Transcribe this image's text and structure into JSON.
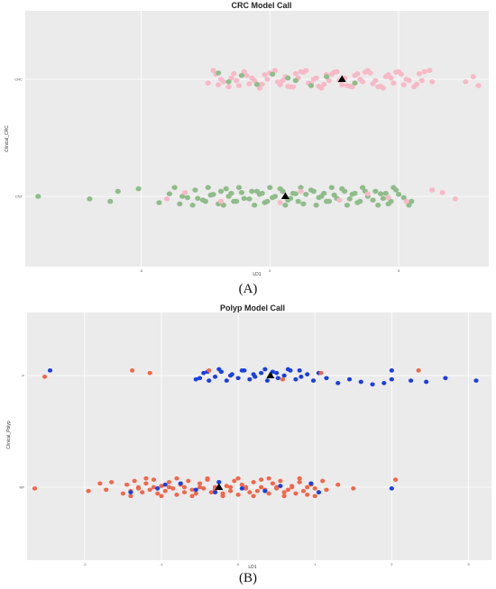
{
  "panels": {
    "a": {
      "label": "(A)"
    },
    "b": {
      "label": "(B)"
    }
  },
  "chart_data": [
    {
      "type": "scatter",
      "title": "CRC Model Call",
      "xlabel": "LD1",
      "ylabel": "Clinical_CRC",
      "categories": [
        "CRC",
        "CNT"
      ],
      "xticks": [
        -5,
        0,
        5
      ],
      "xlim": [
        -9.5,
        8.5
      ],
      "grid": true,
      "colors": {
        "CRC": "#f7b9c6",
        "CNT": "#8fbc8a",
        "centroid": "#000000",
        "panel": "#ebebeb",
        "grid": "#ffffff"
      },
      "series": [
        {
          "category": "CRC",
          "color": "#f7b9c6",
          "x": [
            -2.4,
            -2.1,
            -1.8,
            -1.5,
            -1.2,
            -0.9,
            -0.6,
            -0.3,
            0.0,
            0.3,
            0.6,
            0.9,
            1.2,
            1.5,
            1.8,
            2.1,
            2.4,
            2.7,
            3.0,
            3.3,
            3.6,
            3.9,
            4.2,
            4.5,
            4.8,
            5.1,
            5.4,
            5.7,
            6.0,
            6.3,
            -2.2,
            -1.6,
            -1.0,
            -0.4,
            0.2,
            0.8,
            1.4,
            2.0,
            2.6,
            3.2,
            3.8,
            4.4,
            5.0,
            5.6,
            6.2,
            -1.9,
            -1.3,
            -0.7,
            -0.1,
            0.5,
            1.1,
            1.7,
            2.3,
            2.9,
            3.5,
            4.1,
            4.7,
            5.3,
            5.9,
            -2.0,
            -1.4,
            -0.8,
            -0.2,
            0.4,
            1.0,
            1.6,
            2.2,
            2.8,
            3.4,
            4.0,
            4.6,
            5.2,
            5.8,
            0.7,
            1.3,
            1.9,
            2.5,
            3.1,
            3.7,
            4.3,
            4.9,
            7.6,
            7.9,
            8.1
          ],
          "jitter": [
            0.15,
            -0.2,
            0.1,
            -0.05,
            0.25,
            -0.15,
            0.05,
            0.2,
            -0.25,
            0.1,
            -0.1,
            0.3,
            -0.3,
            0.15,
            -0.05,
            0.2,
            -0.2,
            0.05,
            0.25,
            -0.15,
            0.1,
            -0.25,
            0.3,
            -0.1,
            0.15,
            -0.2,
            0.05,
            0.2,
            -0.3,
            0.1,
            -0.35,
            0.3,
            -0.3,
            0.35,
            -0.35,
            0.3,
            -0.35,
            0.35,
            -0.3,
            0.3,
            -0.35,
            0.35,
            -0.3,
            0.3,
            -0.35,
            0.0,
            0.05,
            -0.05,
            0.0,
            0.05,
            -0.05,
            0.0,
            0.05,
            -0.05,
            0.0,
            0.05,
            -0.05,
            0.0,
            0.05,
            0.22,
            -0.22,
            0.18,
            -0.18,
            0.22,
            -0.22,
            0.18,
            -0.18,
            0.22,
            -0.22,
            0.18,
            -0.18,
            0.22,
            -0.22,
            0.28,
            -0.28,
            0.28,
            -0.28,
            0.28,
            -0.28,
            0.28,
            -0.28,
            0.1,
            -0.1,
            0.25
          ]
        },
        {
          "category": "CRC",
          "color": "#8fbc8a",
          "x": [
            -1.6,
            -1.1,
            -0.5,
            0.1,
            1.0,
            1.6,
            2.2,
            3.3,
            -2.0,
            0.7
          ],
          "jitter": [
            0.1,
            -0.15,
            0.2,
            -0.2,
            0.05,
            0.25,
            -0.1,
            0.15,
            -0.25,
            -0.05
          ]
        },
        {
          "category": "CNT",
          "color": "#8fbc8a",
          "x": [
            -9.0,
            -7.0,
            -6.2,
            -5.9,
            -5.1,
            -4.3,
            -3.9,
            -3.5,
            -3.2,
            -2.9,
            -2.6,
            -2.3,
            -2.0,
            -1.7,
            -1.4,
            -1.1,
            -0.8,
            -0.5,
            -0.2,
            0.1,
            0.4,
            0.7,
            1.0,
            1.3,
            1.6,
            1.9,
            2.2,
            2.5,
            2.8,
            3.1,
            3.4,
            3.7,
            4.0,
            4.3,
            4.6,
            4.9,
            5.2,
            5.5,
            -3.7,
            -3.0,
            -2.4,
            -1.8,
            -1.2,
            -0.6,
            0.0,
            0.6,
            1.2,
            1.8,
            2.4,
            3.0,
            3.6,
            4.2,
            4.8,
            5.4,
            -3.4,
            -2.8,
            -2.2,
            -1.6,
            -1.0,
            -0.4,
            0.2,
            0.8,
            1.4,
            2.0,
            2.6,
            3.2,
            3.8,
            4.4,
            5.0,
            -2.5,
            -1.9,
            -1.3,
            -0.7,
            -0.1,
            0.5,
            1.1,
            1.7,
            2.3,
            2.9,
            3.5,
            4.1,
            4.7,
            -1.5,
            -0.3,
            0.9,
            2.1,
            3.3,
            4.5
          ],
          "jitter": [
            0.0,
            0.1,
            0.2,
            -0.2,
            -0.3,
            0.25,
            -0.1,
            0.3,
            0.05,
            -0.25,
            0.15,
            -0.05,
            0.3,
            -0.3,
            0.2,
            -0.15,
            0.1,
            -0.2,
            0.25,
            0.05,
            -0.3,
            0.15,
            -0.1,
            0.3,
            -0.25,
            0.05,
            0.2,
            -0.05,
            -0.3,
            0.1,
            0.25,
            -0.2,
            0.15,
            -0.1,
            0.3,
            -0.25,
            0.05,
            0.2,
            -0.35,
            0.35,
            -0.35,
            0.35,
            -0.35,
            0.35,
            -0.35,
            0.35,
            -0.35,
            0.35,
            -0.35,
            0.35,
            -0.35,
            0.35,
            -0.35,
            0.35,
            0.0,
            0.08,
            -0.08,
            0.0,
            0.08,
            -0.08,
            0.0,
            0.08,
            -0.08,
            0.0,
            0.08,
            -0.08,
            0.0,
            0.08,
            -0.08,
            0.2,
            -0.2,
            0.2,
            -0.2,
            0.2,
            -0.2,
            0.2,
            -0.2,
            0.2,
            -0.2,
            0.2,
            -0.2,
            0.2,
            -0.12,
            -0.12,
            -0.12,
            -0.12,
            -0.12,
            -0.12
          ]
        },
        {
          "category": "CNT",
          "color": "#f7b9c6",
          "x": [
            -4.0,
            -3.3,
            -1.9,
            0.4,
            1.2,
            2.7,
            3.8,
            4.6,
            5.3,
            6.3,
            7.2,
            6.7
          ],
          "jitter": [
            0.1,
            -0.15,
            0.2,
            0.25,
            -0.2,
            0.15,
            -0.1,
            0.05,
            0.2,
            -0.25,
            0.1,
            -0.15
          ]
        }
      ],
      "centroids": [
        {
          "category": "CRC",
          "x": 2.8
        },
        {
          "category": "CNT",
          "x": 0.6
        }
      ]
    },
    {
      "type": "scatter",
      "title": "Polyp Model Call",
      "xlabel": "LD1",
      "ylabel": "Clinical_Polyp",
      "categories": [
        "P",
        "NP"
      ],
      "xticks": [
        -2,
        -1,
        0,
        1,
        2,
        3
      ],
      "xlim": [
        -2.75,
        3.3
      ],
      "grid": true,
      "colors": {
        "P": "#1b3fe0",
        "NP": "#f2674a",
        "centroid": "#000000",
        "panel": "#ebebeb",
        "grid": "#ffffff"
      },
      "series": [
        {
          "category": "P",
          "color": "#1b3fe0",
          "x": [
            -2.45,
            -0.55,
            -0.5,
            -0.45,
            -0.38,
            -0.3,
            -0.22,
            -0.15,
            -0.08,
            0.0,
            0.08,
            0.15,
            0.22,
            0.3,
            0.38,
            0.45,
            0.52,
            0.6,
            0.68,
            0.75,
            0.82,
            0.9,
            0.98,
            1.05,
            1.15,
            1.3,
            1.45,
            1.6,
            1.75,
            1.9,
            2.0,
            2.25,
            2.45,
            2.7,
            3.1,
            -0.4,
            -0.25,
            -0.1,
            0.05,
            0.2,
            0.35,
            0.5,
            0.65,
            0.8,
            2.0
          ],
          "jitter": [
            -0.2,
            0.15,
            0.1,
            -0.1,
            0.2,
            0.05,
            -0.15,
            0.2,
            -0.05,
            0.1,
            -0.2,
            0.15,
            0.05,
            -0.1,
            0.2,
            -0.15,
            0.1,
            0.0,
            -0.2,
            0.15,
            0.05,
            -0.05,
            0.2,
            -0.1,
            0.1,
            0.3,
            0.15,
            0.25,
            0.35,
            0.3,
            0.15,
            0.2,
            0.25,
            0.1,
            0.2,
            -0.15,
            -0.25,
            0.0,
            -0.2,
            -0.05,
            -0.25,
            -0.1,
            -0.25,
            -0.2,
            -0.2
          ]
        },
        {
          "category": "P",
          "color": "#f2674a",
          "x": [
            -2.52,
            -1.38,
            -1.15,
            -0.38,
            0.58,
            1.08,
            2.35
          ],
          "jitter": [
            0.05,
            -0.2,
            -0.1,
            -0.2,
            0.15,
            -0.1,
            -0.2
          ]
        },
        {
          "category": "NP",
          "color": "#f2674a",
          "x": [
            -2.65,
            -1.95,
            -1.8,
            -1.72,
            -1.65,
            -1.5,
            -1.45,
            -1.4,
            -1.35,
            -1.3,
            -1.25,
            -1.2,
            -1.15,
            -1.1,
            -1.05,
            -1.0,
            -0.95,
            -0.9,
            -0.85,
            -0.8,
            -0.75,
            -0.7,
            -0.65,
            -0.6,
            -0.55,
            -0.5,
            -0.45,
            -0.4,
            -0.35,
            -0.3,
            -0.25,
            -0.2,
            -0.15,
            -0.1,
            -0.05,
            0.0,
            0.05,
            0.1,
            0.15,
            0.2,
            0.25,
            0.3,
            0.35,
            0.4,
            0.45,
            0.5,
            0.55,
            0.6,
            0.65,
            0.7,
            0.75,
            0.8,
            0.85,
            0.9,
            0.95,
            1.0,
            1.05,
            1.1,
            1.15,
            1.3,
            1.5,
            2.05,
            -1.4,
            -1.2,
            -1.0,
            -0.8,
            -0.6,
            -0.4,
            -0.2,
            0.0,
            0.2,
            0.4,
            0.6,
            0.8,
            1.0,
            -1.3,
            -1.1,
            -0.9,
            -0.7,
            -0.5,
            -0.3,
            -0.1,
            0.1,
            0.3,
            0.5,
            0.7,
            0.9
          ],
          "jitter": [
            0.05,
            0.15,
            -0.15,
            0.1,
            -0.2,
            0.25,
            -0.1,
            0.15,
            -0.25,
            0.05,
            0.2,
            -0.15,
            0.1,
            -0.3,
            0.25,
            -0.05,
            0.15,
            -0.2,
            0.05,
            0.3,
            -0.1,
            0.2,
            -0.25,
            0.1,
            0.25,
            -0.15,
            0.05,
            -0.3,
            0.2,
            0.1,
            -0.2,
            0.25,
            -0.05,
            0.15,
            -0.25,
            0.3,
            -0.1,
            0.05,
            0.2,
            -0.2,
            0.15,
            -0.3,
            0.1,
            0.25,
            -0.15,
            0.05,
            -0.25,
            0.2,
            0.1,
            -0.05,
            0.25,
            -0.2,
            0.15,
            0.3,
            -0.1,
            0.05,
            0.2,
            -0.25,
            0.1,
            -0.1,
            0.05,
            -0.3,
            0.35,
            -0.35,
            0.35,
            -0.35,
            0.35,
            -0.35,
            0.35,
            -0.35,
            0.35,
            -0.35,
            0.35,
            -0.35,
            0.35,
            0.0,
            0.0,
            0.0,
            0.0,
            0.0,
            0.0,
            0.0,
            0.0,
            0.0,
            0.0,
            0.0,
            0.0
          ]
        },
        {
          "category": "NP",
          "color": "#1b3fe0",
          "x": [
            -1.4,
            -1.05,
            -0.95,
            -0.75,
            -0.55,
            -0.3,
            -0.25,
            0.05,
            0.35,
            0.55,
            0.95,
            1.05,
            2.0
          ],
          "jitter": [
            0.2,
            0.05,
            -0.1,
            -0.15,
            0.1,
            0.2,
            -0.2,
            0.05,
            0.15,
            -0.05,
            -0.15,
            0.2,
            0.05
          ]
        }
      ],
      "centroids": [
        {
          "category": "P",
          "x": 0.42
        },
        {
          "category": "NP",
          "x": -0.25
        }
      ]
    }
  ]
}
